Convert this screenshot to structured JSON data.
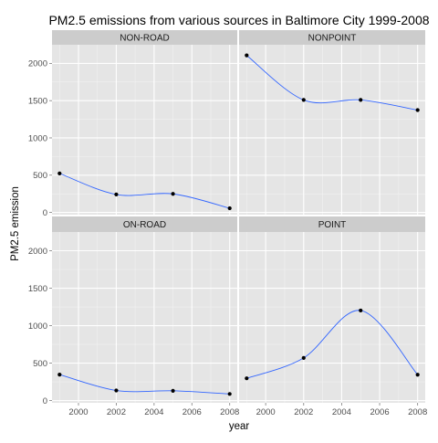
{
  "chart_data": {
    "type": "line",
    "title": "PM2.5 emissions from various sources in Baltimore City 1999-2008",
    "xlabel": "year",
    "ylabel": "PM2.5 emission",
    "x_ticks": [
      2000,
      2002,
      2004,
      2006,
      2008
    ],
    "y_ticks": [
      0,
      500,
      1000,
      1500,
      2000
    ],
    "xlim": [
      1998.6,
      2008.4
    ],
    "ylim": [
      -30,
      2250
    ],
    "grid": true,
    "facets": [
      {
        "name": "NON-ROAD",
        "x": [
          1999,
          2002,
          2005,
          2008
        ],
        "values": [
          522.94,
          240.85,
          248.93,
          55.82
        ]
      },
      {
        "name": "NONPOINT",
        "x": [
          1999,
          2002,
          2005,
          2008
        ],
        "values": [
          2107.63,
          1509.5,
          1509.5,
          1373.21
        ]
      },
      {
        "name": "ON-ROAD",
        "x": [
          1999,
          2002,
          2005,
          2008
        ],
        "values": [
          346.82,
          134.31,
          130.43,
          88.28
        ]
      },
      {
        "name": "POINT",
        "x": [
          1999,
          2002,
          2005,
          2008
        ],
        "values": [
          296.8,
          569.26,
          1202.49,
          344.98
        ]
      }
    ],
    "colors": {
      "panel_bg": "#e5e5e5",
      "strip_bg": "#cccccc",
      "grid_major": "#ffffff",
      "grid_minor": "#f2f2f2",
      "line": "#3366ff",
      "point": "#000000"
    }
  }
}
